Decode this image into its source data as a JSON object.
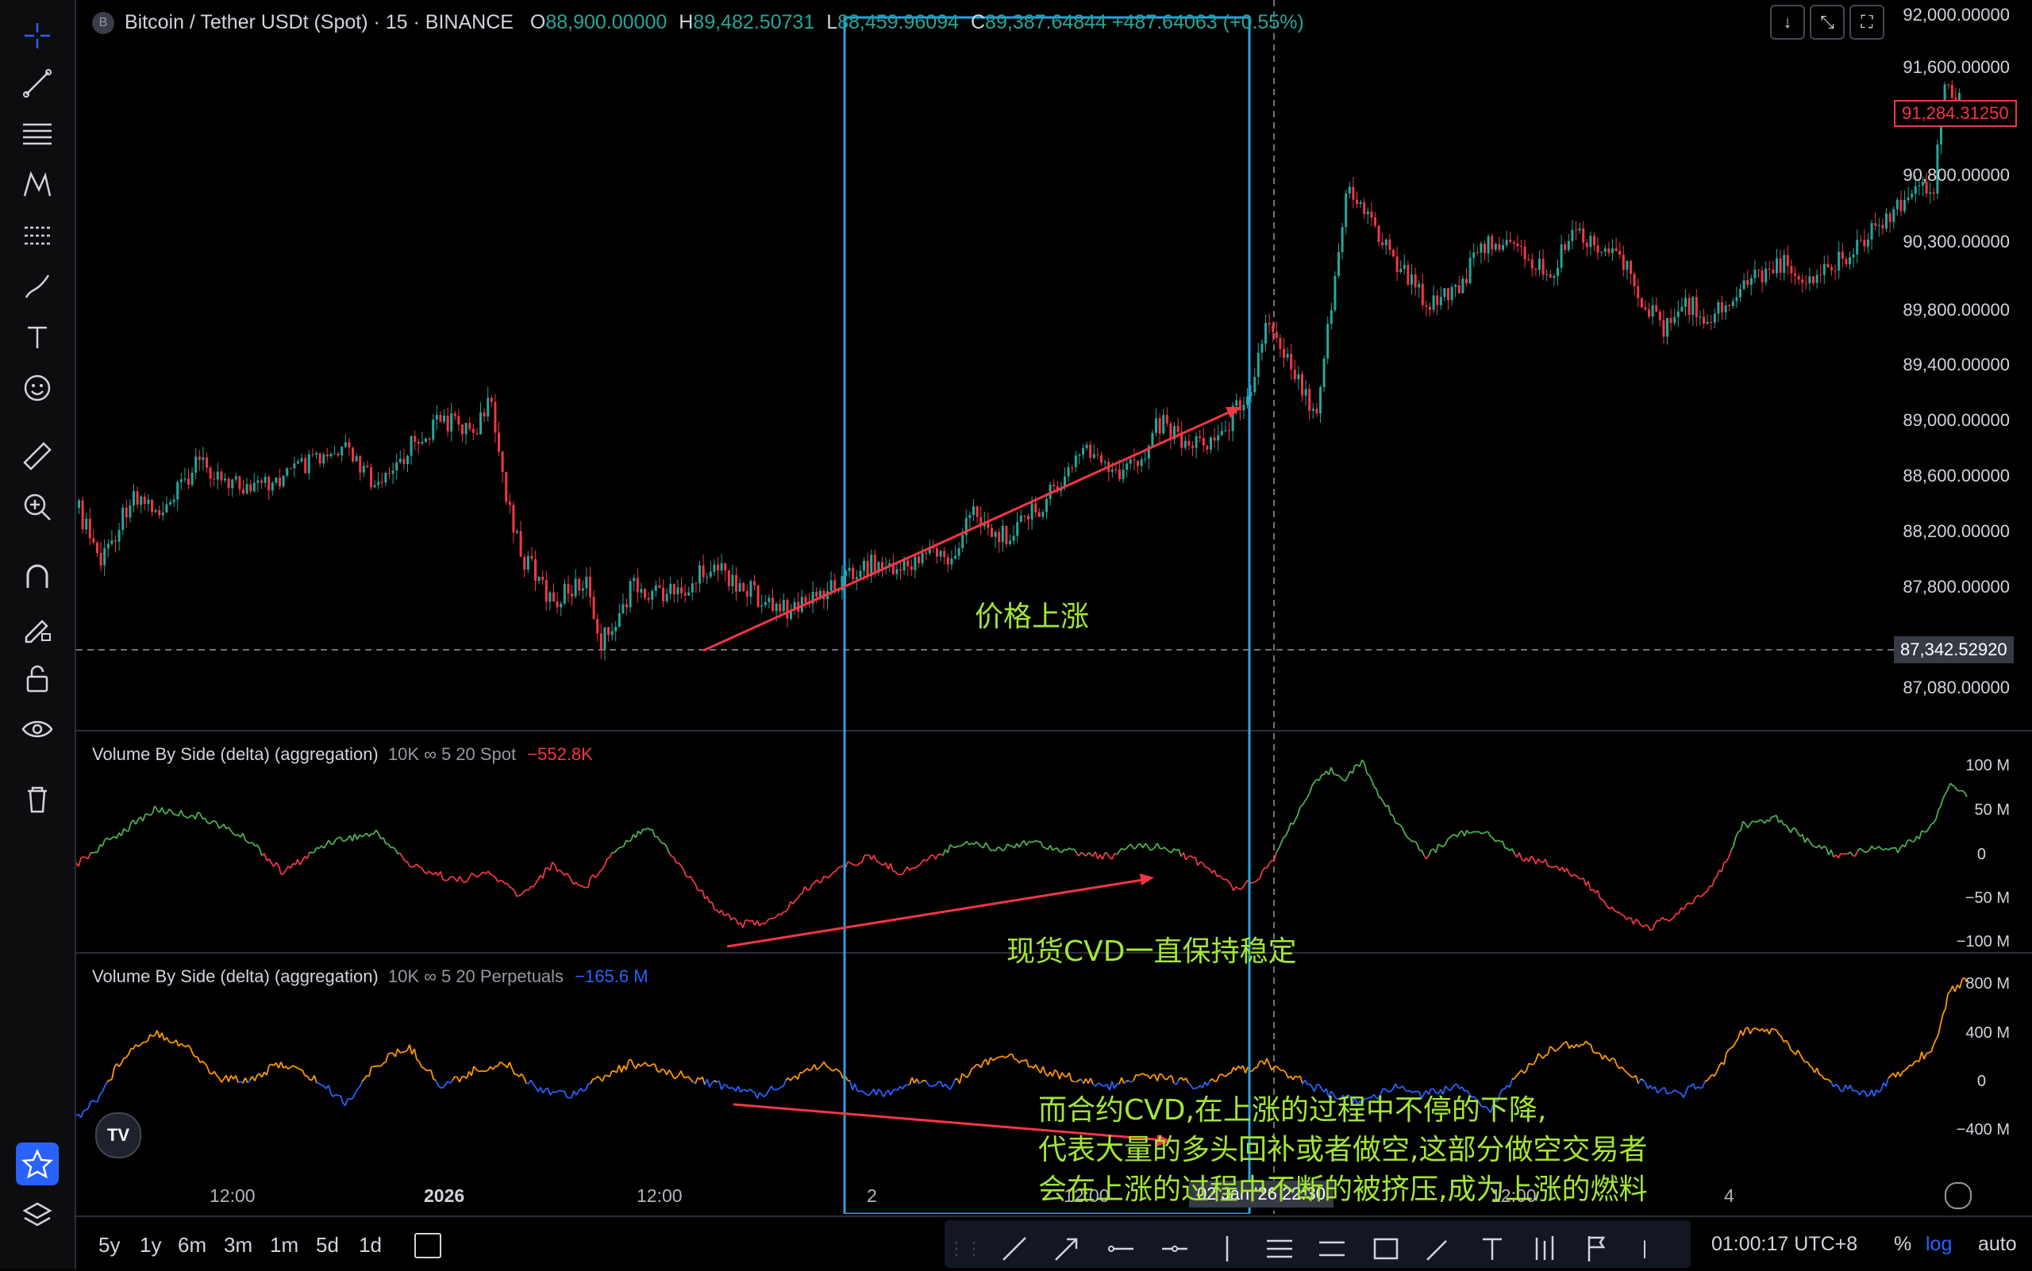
{
  "header": {
    "symbol_icon": "B",
    "title": "Bitcoin / Tether USDt (Spot) · 15 · BINANCE",
    "o_label": "O",
    "o_value": "88,900.00000",
    "h_label": "H",
    "h_value": "89,482.50731",
    "l_label": "L",
    "l_value": "88,459.96094",
    "c_label": "C",
    "c_value": "89,387.64844 +487.64063 (+0.55%)"
  },
  "price_axis": [
    "92,000.00000",
    "91,600.00000",
    "90,800.00000",
    "90,300.00000",
    "89,800.00000",
    "89,400.00000",
    "89,000.00000",
    "88,600.00000",
    "88,200.00000",
    "87,800.00000",
    "87,080.00000"
  ],
  "current_price": "91,284.31250",
  "crosshair_price": "87,342.52920",
  "spot_indicator": {
    "label": "Volume By Side (delta) (aggregation)",
    "params": "10K ∞ 5 20 Spot",
    "value": "−552.8K",
    "axis": [
      "100 M",
      "50 M",
      "0",
      "−50 M",
      "−100 M"
    ]
  },
  "perp_indicator": {
    "label": "Volume By Side (delta) (aggregation)",
    "params": "10K ∞ 5 20 Perpetuals",
    "value": "−165.6 M",
    "axis": [
      "800 M",
      "400 M",
      "0",
      "−400 M"
    ]
  },
  "time_axis": [
    "12:00",
    "2026",
    "12:00",
    "2",
    "12:00",
    "12:00",
    "4"
  ],
  "crosshair_time": "02 Jan '26  22:30",
  "annotations": {
    "price_up": "价格上涨",
    "spot_cvd": "现货CVD一直保持稳定",
    "perp_line1": "而合约CVD,在上涨的过程中不停的下降,",
    "perp_line2": "代表大量的多头回补或者做空,这部分做空交易者",
    "perp_line3": "会在上涨的过程中不断的被挤压,成为上涨的燃料"
  },
  "timeframes": [
    "5y",
    "1y",
    "6m",
    "3m",
    "1m",
    "5d",
    "1d"
  ],
  "clock": "01:00:17 UTC+8",
  "scale_options": {
    "percent": "%",
    "log": "log",
    "auto": "auto"
  },
  "logo": "TV",
  "colors": {
    "up": "#26a69a",
    "down": "#f23645",
    "spot_up": "#4caf50",
    "perp_up": "#ff9800",
    "perp_down": "#2962ff",
    "highlight_box": "#29a3e0",
    "arrow": "#f23645",
    "annotation": "#a3e635"
  }
}
